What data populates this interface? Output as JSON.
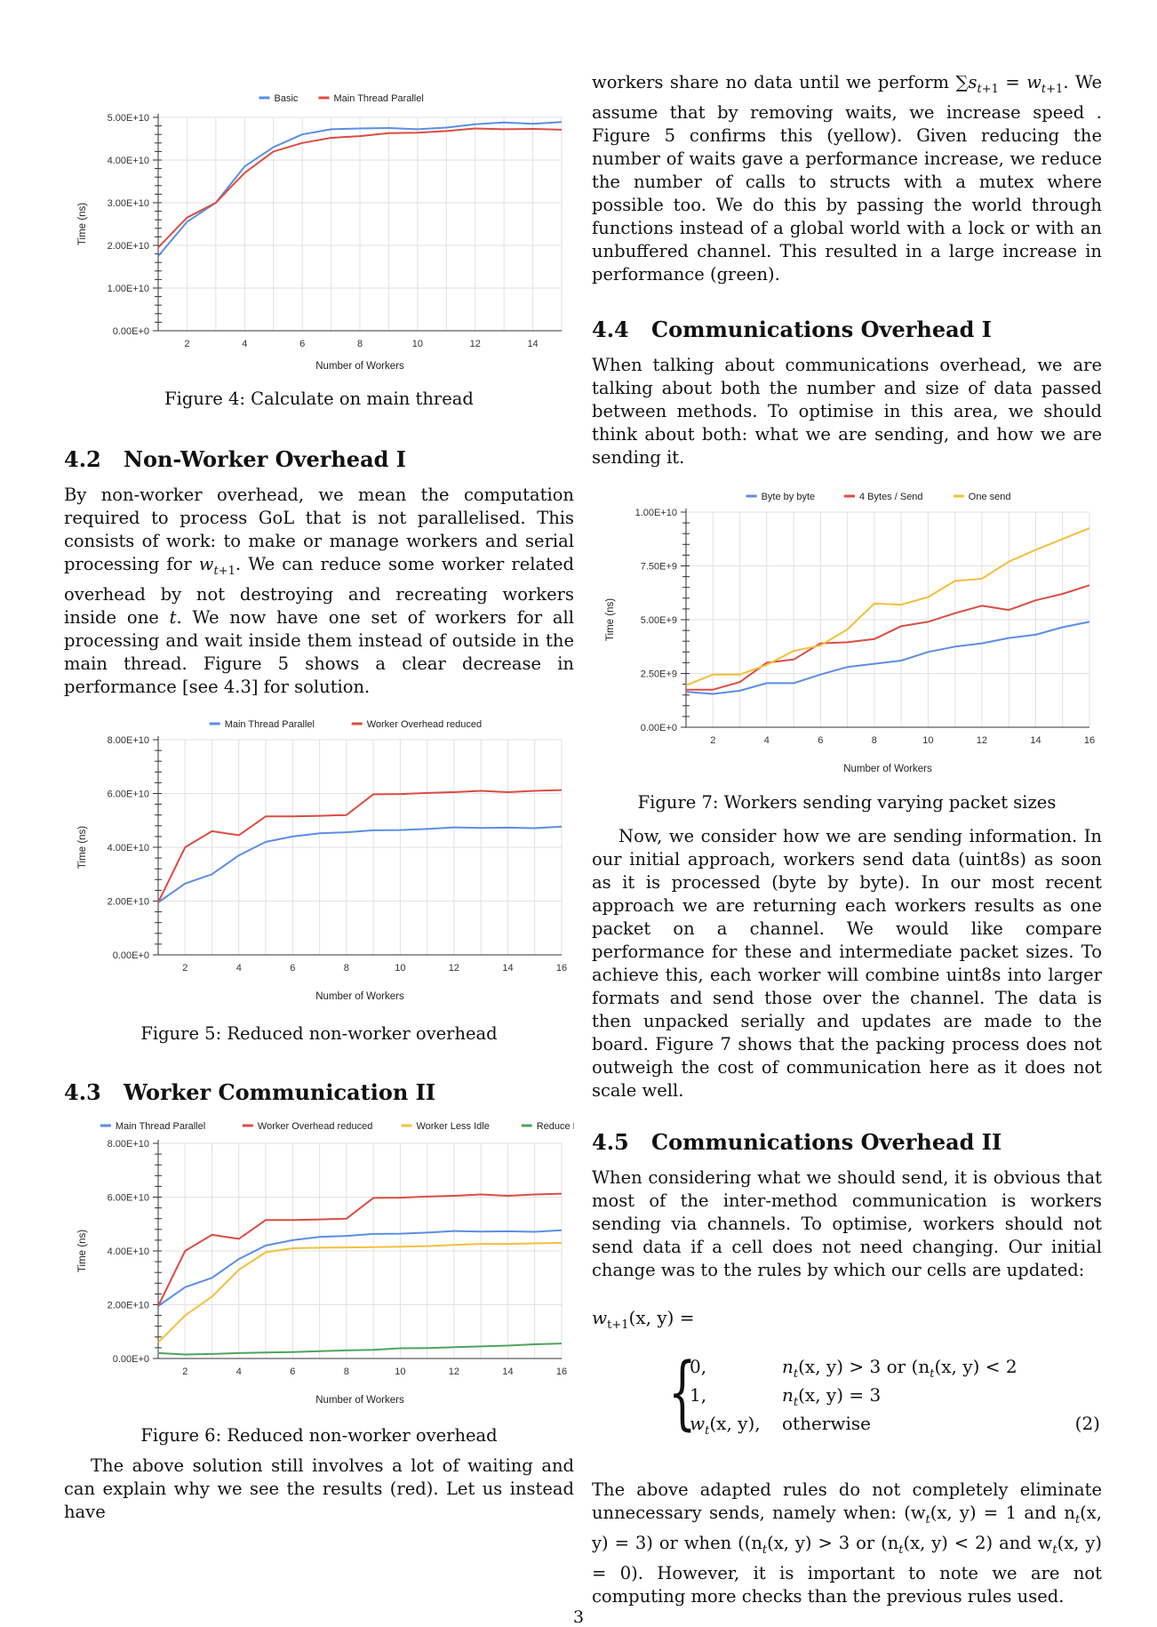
{
  "page_number": "3",
  "figures": {
    "fig4": {
      "caption": "Figure 4: Calculate on main thread"
    },
    "fig5": {
      "caption": "Figure 5: Reduced non-worker overhead"
    },
    "fig6": {
      "caption": "Figure 6: Reduced non-worker overhead"
    },
    "fig7": {
      "caption": "Figure 7: Workers sending varying packet sizes"
    }
  },
  "sections": {
    "s42": {
      "num": "4.2",
      "title": "Non-Worker Overhead I"
    },
    "s43": {
      "num": "4.3",
      "title": "Worker Communication II"
    },
    "s44": {
      "num": "4.4",
      "title": "Communications Overhead I"
    },
    "s45": {
      "num": "4.5",
      "title": "Communications Overhead II"
    }
  },
  "text": {
    "s42_p1_a": "By non-worker overhead, we mean the computation required to process GoL that is not parallelised. This consists of work: to make or manage workers and serial processing for ",
    "s42_p1_b": ". We can reduce some worker related overhead by not destroying and recreating workers inside one ",
    "s42_p1_c": ". We now have one set of workers for all processing and wait inside them instead of outside in the main thread. Figure 5 shows a clear decrease in performance [see 4.3] for solution.",
    "s43_p1": "The above solution still involves a lot of waiting and can explain why we see the results (red). Let us instead have",
    "right_p1_a": "workers share no data until we perform ",
    "right_p1_b": ". We assume that by removing waits, we increase speed . Figure 5 confirms this (yellow). Given reducing the number of waits gave a performance increase, we reduce the number of calls to structs with a mutex where possible too. We do this by passing the world through functions instead of a global world with a lock or with an unbuffered channel. This resulted in a large increase in performance (green).",
    "s44_p1": "When talking about communications overhead, we are talking about both the number and size of data passed between methods. To optimise in this area, we should think about both: what we are sending, and how we are sending it.",
    "s44_p2": "Now, we consider how we are sending information. In our initial approach, workers send data (uint8s) as soon as it is processed (byte by byte). In our most recent approach we are returning each workers results as one packet on a channel. We would like compare performance for these and intermediate packet sizes. To achieve this, each worker will combine uint8s into larger formats and send those over the channel. The data is then unpacked serially and updates are made to the board. Figure 7 shows that the packing process does not outweigh the cost of communication here as it does not scale well.",
    "s45_p1": "When considering what we should send, it is obvious that most of the inter-method communication is workers sending via channels. To optimise, workers should not send data if a cell does not need changing. Our initial change was to the rules by which our cells are updated:",
    "eq_lhs": "w",
    "eq_lhs_sub": "t+1",
    "eq_lhs_args": "(x, y) =",
    "case1_val": "0,",
    "case1_cond": "n",
    "case1_cond_rest": "(x, y) > 3 or (n",
    "case1_cond_rest2": "(x, y) < 2",
    "case2_val": "1,",
    "case2_cond": "n",
    "case2_cond_rest": "(x, y) = 3",
    "case3_val": "w",
    "case3_val_rest": "(x, y),",
    "case3_cond": "otherwise",
    "eq_number": "(2)",
    "s45_p2_a": "The above adapted rules do not completely eliminate unnecessary sends, namely when: (w",
    "s45_p2_b": "(x, y) = 1 and n",
    "s45_p2_c": "(x, y) = 3) or when ((n",
    "s45_p2_d": "(x, y) > 3 or (n",
    "s45_p2_e": "(x, y) < 2) and w",
    "s45_p2_f": "(x, y) = 0). However, it is important to note we are not computing more checks than the previous rules used."
  },
  "chart_data": [
    {
      "id": "fig4",
      "type": "line",
      "ylabel": "Time (ns)",
      "xlabel": "Number of Workers",
      "ylim": [
        0,
        50000000000.0
      ],
      "xlim": [
        1,
        15
      ],
      "yticks": [
        "0.00E+0",
        "1.00E+10",
        "2.00E+10",
        "3.00E+10",
        "4.00E+10",
        "5.00E+10"
      ],
      "xticks": [
        "2",
        "4",
        "6",
        "8",
        "10",
        "12",
        "14"
      ],
      "legend_position": "top",
      "grid": true,
      "x": [
        1,
        2,
        3,
        4,
        5,
        6,
        7,
        8,
        9,
        10,
        11,
        12,
        13,
        14,
        15
      ],
      "series": [
        {
          "name": "Basic",
          "color": "#5b8ee6",
          "values": [
            17500000000.0,
            25500000000.0,
            30000000000.0,
            38500000000.0,
            43000000000.0,
            46000000000.0,
            47200000000.0,
            47400000000.0,
            47500000000.0,
            47200000000.0,
            47600000000.0,
            48400000000.0,
            48800000000.0,
            48500000000.0,
            48900000000.0
          ]
        },
        {
          "name": "Main Thread Parallel",
          "color": "#dc4d42",
          "values": [
            19500000000.0,
            26500000000.0,
            30000000000.0,
            37000000000.0,
            42000000000.0,
            44000000000.0,
            45200000000.0,
            45600000000.0,
            46300000000.0,
            46400000000.0,
            46800000000.0,
            47400000000.0,
            47200000000.0,
            47300000000.0,
            47100000000.0
          ]
        }
      ]
    },
    {
      "id": "fig5",
      "type": "line",
      "ylabel": "Time (ns)",
      "xlabel": "Number of Workers",
      "ylim": [
        0,
        80000000000.0
      ],
      "xlim": [
        1,
        16
      ],
      "yticks": [
        "0.00E+0",
        "2.00E+10",
        "4.00E+10",
        "6.00E+10",
        "8.00E+10"
      ],
      "xticks": [
        "2",
        "4",
        "6",
        "8",
        "10",
        "12",
        "14",
        "16"
      ],
      "legend_position": "top",
      "grid": true,
      "x": [
        1,
        2,
        3,
        4,
        5,
        6,
        7,
        8,
        9,
        10,
        11,
        12,
        13,
        14,
        15,
        16
      ],
      "series": [
        {
          "name": "Main Thread Parallel",
          "color": "#5b8ee6",
          "values": [
            19500000000.0,
            26500000000.0,
            30000000000.0,
            37000000000.0,
            42000000000.0,
            44000000000.0,
            45200000000.0,
            45600000000.0,
            46300000000.0,
            46400000000.0,
            46800000000.0,
            47400000000.0,
            47200000000.0,
            47300000000.0,
            47100000000.0,
            47700000000.0
          ]
        },
        {
          "name": "Worker Overhead reduced",
          "color": "#dc4d42",
          "values": [
            19500000000.0,
            40000000000.0,
            46000000000.0,
            44500000000.0,
            51500000000.0,
            51500000000.0,
            51700000000.0,
            52000000000.0,
            59700000000.0,
            59800000000.0,
            60200000000.0,
            60500000000.0,
            61000000000.0,
            60500000000.0,
            61000000000.0,
            61300000000.0
          ]
        }
      ]
    },
    {
      "id": "fig6",
      "type": "line",
      "ylabel": "Time (ns)",
      "xlabel": "Number of Workers",
      "ylim": [
        0,
        80000000000.0
      ],
      "xlim": [
        1,
        16
      ],
      "yticks": [
        "0.00E+0",
        "2.00E+10",
        "4.00E+10",
        "6.00E+10",
        "8.00E+10"
      ],
      "xticks": [
        "2",
        "4",
        "6",
        "8",
        "10",
        "12",
        "14",
        "16"
      ],
      "legend_position": "top",
      "grid": true,
      "x": [
        1,
        2,
        3,
        4,
        5,
        6,
        7,
        8,
        9,
        10,
        11,
        12,
        13,
        14,
        15,
        16
      ],
      "series": [
        {
          "name": "Main Thread Parallel",
          "color": "#5b8ee6",
          "values": [
            19500000000.0,
            26500000000.0,
            30000000000.0,
            37000000000.0,
            42000000000.0,
            44000000000.0,
            45200000000.0,
            45600000000.0,
            46300000000.0,
            46400000000.0,
            46800000000.0,
            47400000000.0,
            47200000000.0,
            47300000000.0,
            47100000000.0,
            47700000000.0
          ]
        },
        {
          "name": "Worker Overhead reduced",
          "color": "#dc4d42",
          "values": [
            19500000000.0,
            40000000000.0,
            46000000000.0,
            44500000000.0,
            51500000000.0,
            51500000000.0,
            51700000000.0,
            52000000000.0,
            59700000000.0,
            59800000000.0,
            60200000000.0,
            60500000000.0,
            61000000000.0,
            60500000000.0,
            61000000000.0,
            61300000000.0
          ]
        },
        {
          "name": "Worker Less Idle",
          "color": "#f3c03c",
          "values": [
            6000000000.0,
            16000000000.0,
            23000000000.0,
            33000000000.0,
            39500000000.0,
            41000000000.0,
            41200000000.0,
            41300000000.0,
            41400000000.0,
            41600000000.0,
            41800000000.0,
            42200000000.0,
            42600000000.0,
            42600000000.0,
            42800000000.0,
            43000000000.0
          ]
        },
        {
          "name": "Reduce Mutex",
          "color": "#4fa55b",
          "values": [
            2000000000.0,
            1500000000.0,
            1700000000.0,
            2000000000.0,
            2200000000.0,
            2400000000.0,
            2700000000.0,
            3000000000.0,
            3200000000.0,
            3800000000.0,
            3900000000.0,
            4200000000.0,
            4500000000.0,
            4800000000.0,
            5300000000.0,
            5600000000.0
          ]
        }
      ]
    },
    {
      "id": "fig7",
      "type": "line",
      "ylabel": "Time (ns)",
      "xlabel": "Number of Workers",
      "ylim": [
        0,
        10000000000.0
      ],
      "xlim": [
        1,
        16
      ],
      "yticks": [
        "0.00E+0",
        "2.50E+9",
        "5.00E+9",
        "7.50E+9",
        "1.00E+10"
      ],
      "xticks": [
        "2",
        "4",
        "6",
        "8",
        "10",
        "12",
        "14",
        "16"
      ],
      "legend_position": "top",
      "grid": true,
      "x": [
        1,
        2,
        3,
        4,
        5,
        6,
        7,
        8,
        9,
        10,
        11,
        12,
        13,
        14,
        15,
        16
      ],
      "series": [
        {
          "name": "Byte by byte",
          "color": "#5b8ee6",
          "values": [
            1650000000.0,
            1550000000.0,
            1700000000.0,
            2050000000.0,
            2050000000.0,
            2450000000.0,
            2800000000.0,
            2950000000.0,
            3100000000.0,
            3500000000.0,
            3750000000.0,
            3900000000.0,
            4150000000.0,
            4300000000.0,
            4650000000.0,
            4900000000.0
          ]
        },
        {
          "name": "4 Bytes / Send",
          "color": "#dc4d42",
          "values": [
            1750000000.0,
            1750000000.0,
            2100000000.0,
            3000000000.0,
            3150000000.0,
            3900000000.0,
            3950000000.0,
            4100000000.0,
            4700000000.0,
            4900000000.0,
            5300000000.0,
            5650000000.0,
            5450000000.0,
            5900000000.0,
            6200000000.0,
            6600000000.0
          ]
        },
        {
          "name": "One send",
          "color": "#f3c03c",
          "values": [
            1950000000.0,
            2450000000.0,
            2450000000.0,
            2900000000.0,
            3550000000.0,
            3800000000.0,
            4550000000.0,
            5750000000.0,
            5700000000.0,
            6050000000.0,
            6800000000.0,
            6900000000.0,
            7700000000.0,
            8250000000.0,
            8750000000.0,
            9250000000.0
          ]
        }
      ]
    }
  ]
}
